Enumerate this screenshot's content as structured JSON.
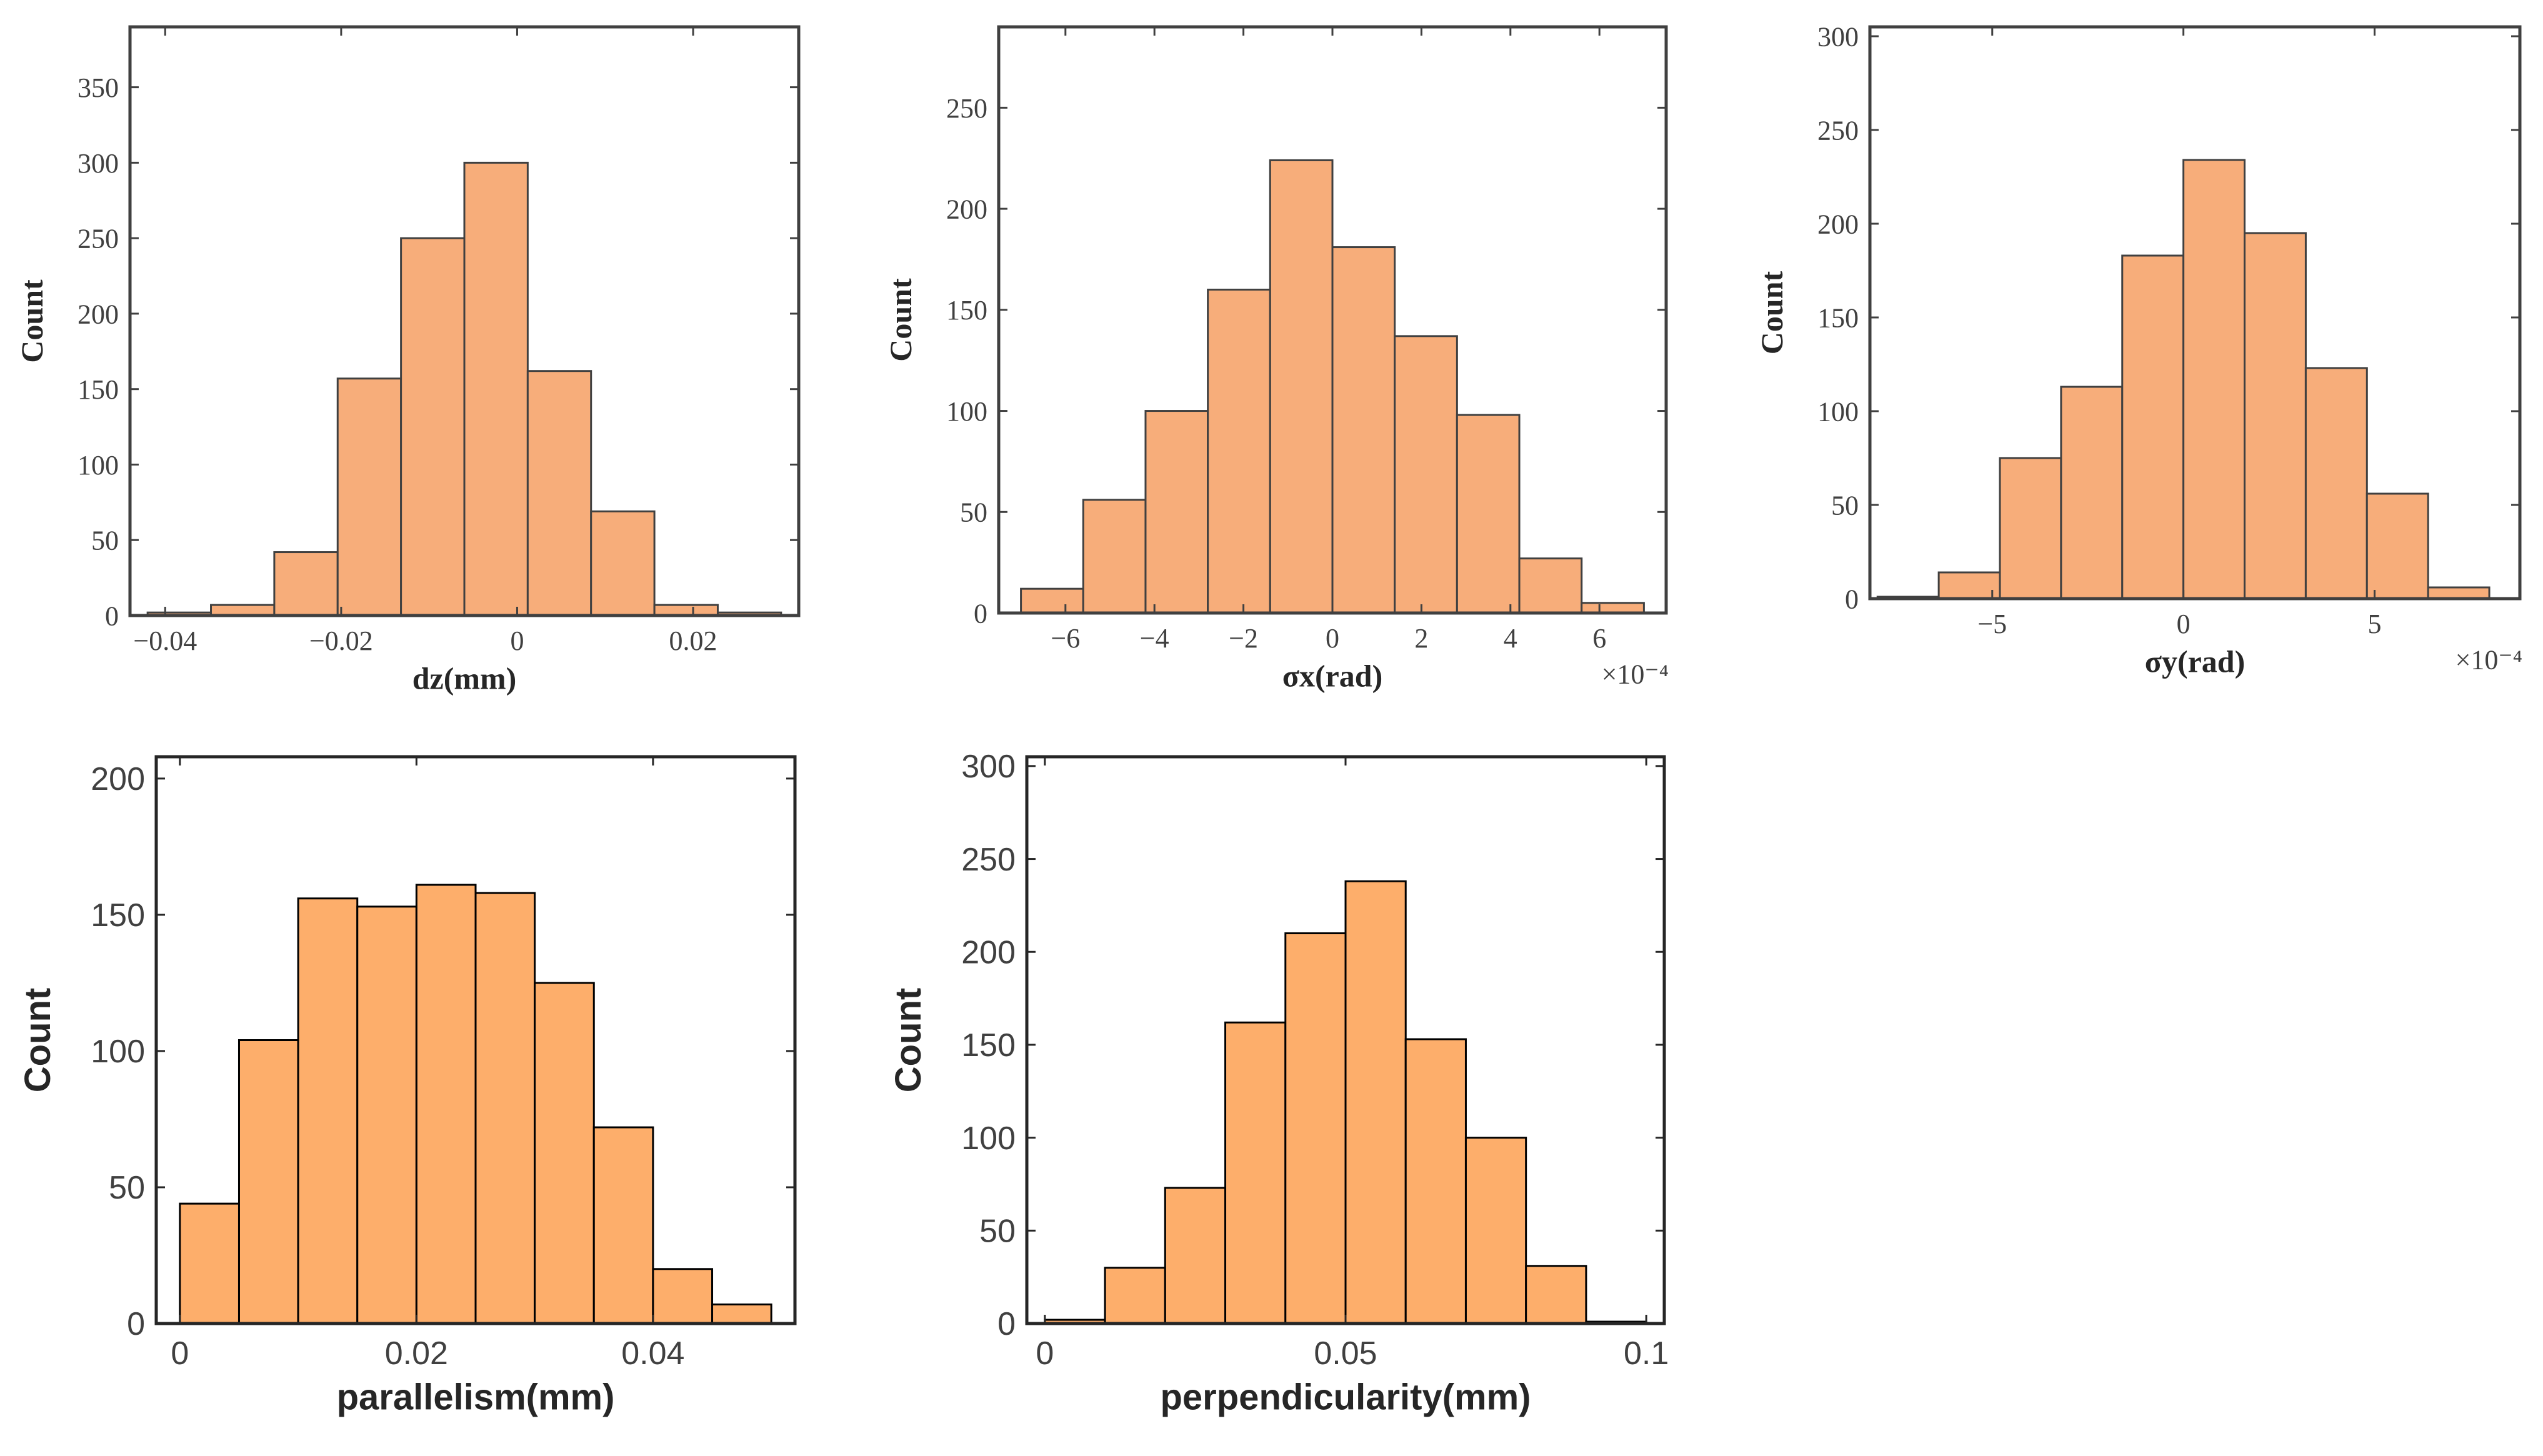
{
  "chart_data": [
    {
      "type": "bar",
      "title": "",
      "xlabel": "dz(mm)",
      "ylabel": "Count",
      "bin_edges": [
        -0.042,
        -0.0348,
        -0.0276,
        -0.0204,
        -0.0132,
        -0.006,
        0.0012,
        0.0084,
        0.0156,
        0.0228,
        0.03
      ],
      "values": [
        2,
        7,
        42,
        157,
        250,
        300,
        162,
        69,
        7,
        2
      ],
      "xlim": [
        -0.044,
        0.032
      ],
      "ylim": [
        0,
        390
      ],
      "xticks": [
        -0.04,
        -0.02,
        0,
        0.02
      ],
      "xtick_labels": [
        "−0.04",
        "−0.02",
        "0",
        "0.02"
      ],
      "yticks": [
        0,
        50,
        100,
        150,
        200,
        250,
        300,
        350
      ],
      "ytick_labels": [
        "0",
        "50",
        "100",
        "150",
        "200",
        "250",
        "300",
        "350"
      ],
      "exponent_label": "",
      "bar_color": "#f7ad7a",
      "edge_color": "#404040",
      "grid": false
    },
    {
      "type": "bar",
      "title": "",
      "xlabel": "σx(rad)",
      "ylabel": "Count",
      "bin_edges": [
        -7,
        -5.6,
        -4.2,
        -2.8,
        -1.4,
        0,
        1.4,
        2.8,
        4.2,
        5.6,
        7
      ],
      "values": [
        12,
        56,
        100,
        160,
        224,
        181,
        137,
        98,
        27,
        5
      ],
      "xlim": [
        -7.5,
        7.5
      ],
      "ylim": [
        0,
        290
      ],
      "xticks": [
        -6,
        -4,
        -2,
        0,
        2,
        4,
        6
      ],
      "xtick_labels": [
        "−6",
        "−4",
        "−2",
        "0",
        "2",
        "4",
        "6"
      ],
      "yticks": [
        0,
        50,
        100,
        150,
        200,
        250
      ],
      "ytick_labels": [
        "0",
        "50",
        "100",
        "150",
        "200",
        "250"
      ],
      "exponent_label": "×10⁻⁴",
      "bar_color": "#f7ad7a",
      "edge_color": "#404040",
      "grid": false
    },
    {
      "type": "bar",
      "title": "",
      "xlabel": "σy(rad)",
      "ylabel": "Count",
      "bin_edges": [
        -8,
        -6.4,
        -4.8,
        -3.2,
        -1.6,
        0,
        1.6,
        3.2,
        4.8,
        6.4,
        8
      ],
      "values": [
        1,
        14,
        75,
        113,
        183,
        234,
        195,
        123,
        56,
        6
      ],
      "xlim": [
        -8.2,
        8.8
      ],
      "ylim": [
        0,
        305
      ],
      "xticks": [
        -5,
        0,
        5
      ],
      "xtick_labels": [
        "−5",
        "0",
        "5"
      ],
      "yticks": [
        0,
        50,
        100,
        150,
        200,
        250,
        300
      ],
      "ytick_labels": [
        "0",
        "50",
        "100",
        "150",
        "200",
        "250",
        "300"
      ],
      "exponent_label": "×10⁻⁴",
      "bar_color": "#f7ad7a",
      "edge_color": "#404040",
      "grid": false
    },
    {
      "type": "bar",
      "title": "",
      "xlabel": "parallelism(mm)",
      "ylabel": "Count",
      "bin_edges": [
        0,
        0.005,
        0.01,
        0.015,
        0.02,
        0.025,
        0.03,
        0.035,
        0.04,
        0.045,
        0.05
      ],
      "values": [
        44,
        104,
        156,
        153,
        161,
        158,
        125,
        72,
        20,
        7
      ],
      "xlim": [
        -0.002,
        0.052
      ],
      "ylim": [
        0,
        208
      ],
      "xticks": [
        0,
        0.02,
        0.04
      ],
      "xtick_labels": [
        "0",
        "0.02",
        "0.04"
      ],
      "yticks": [
        0,
        50,
        100,
        150,
        200
      ],
      "ytick_labels": [
        "0",
        "50",
        "100",
        "150",
        "200"
      ],
      "exponent_label": "",
      "bar_color": "#fdae6b",
      "edge_color": "#000000",
      "grid": false
    },
    {
      "type": "bar",
      "title": "",
      "xlabel": "perpendicularity(mm)",
      "ylabel": "Count",
      "bin_edges": [
        0,
        0.01,
        0.02,
        0.03,
        0.04,
        0.05,
        0.06,
        0.07,
        0.08,
        0.09,
        0.1
      ],
      "values": [
        2,
        30,
        73,
        162,
        210,
        238,
        153,
        100,
        31,
        1
      ],
      "xlim": [
        -0.003,
        0.103
      ],
      "ylim": [
        0,
        305
      ],
      "xticks": [
        0,
        0.05,
        0.1
      ],
      "xtick_labels": [
        "0",
        "0.05",
        "0.1"
      ],
      "yticks": [
        0,
        50,
        100,
        150,
        200,
        250,
        300
      ],
      "ytick_labels": [
        "0",
        "50",
        "100",
        "150",
        "200",
        "250",
        "300"
      ],
      "exponent_label": "",
      "bar_color": "#fdae6b",
      "edge_color": "#000000",
      "grid": false
    }
  ]
}
